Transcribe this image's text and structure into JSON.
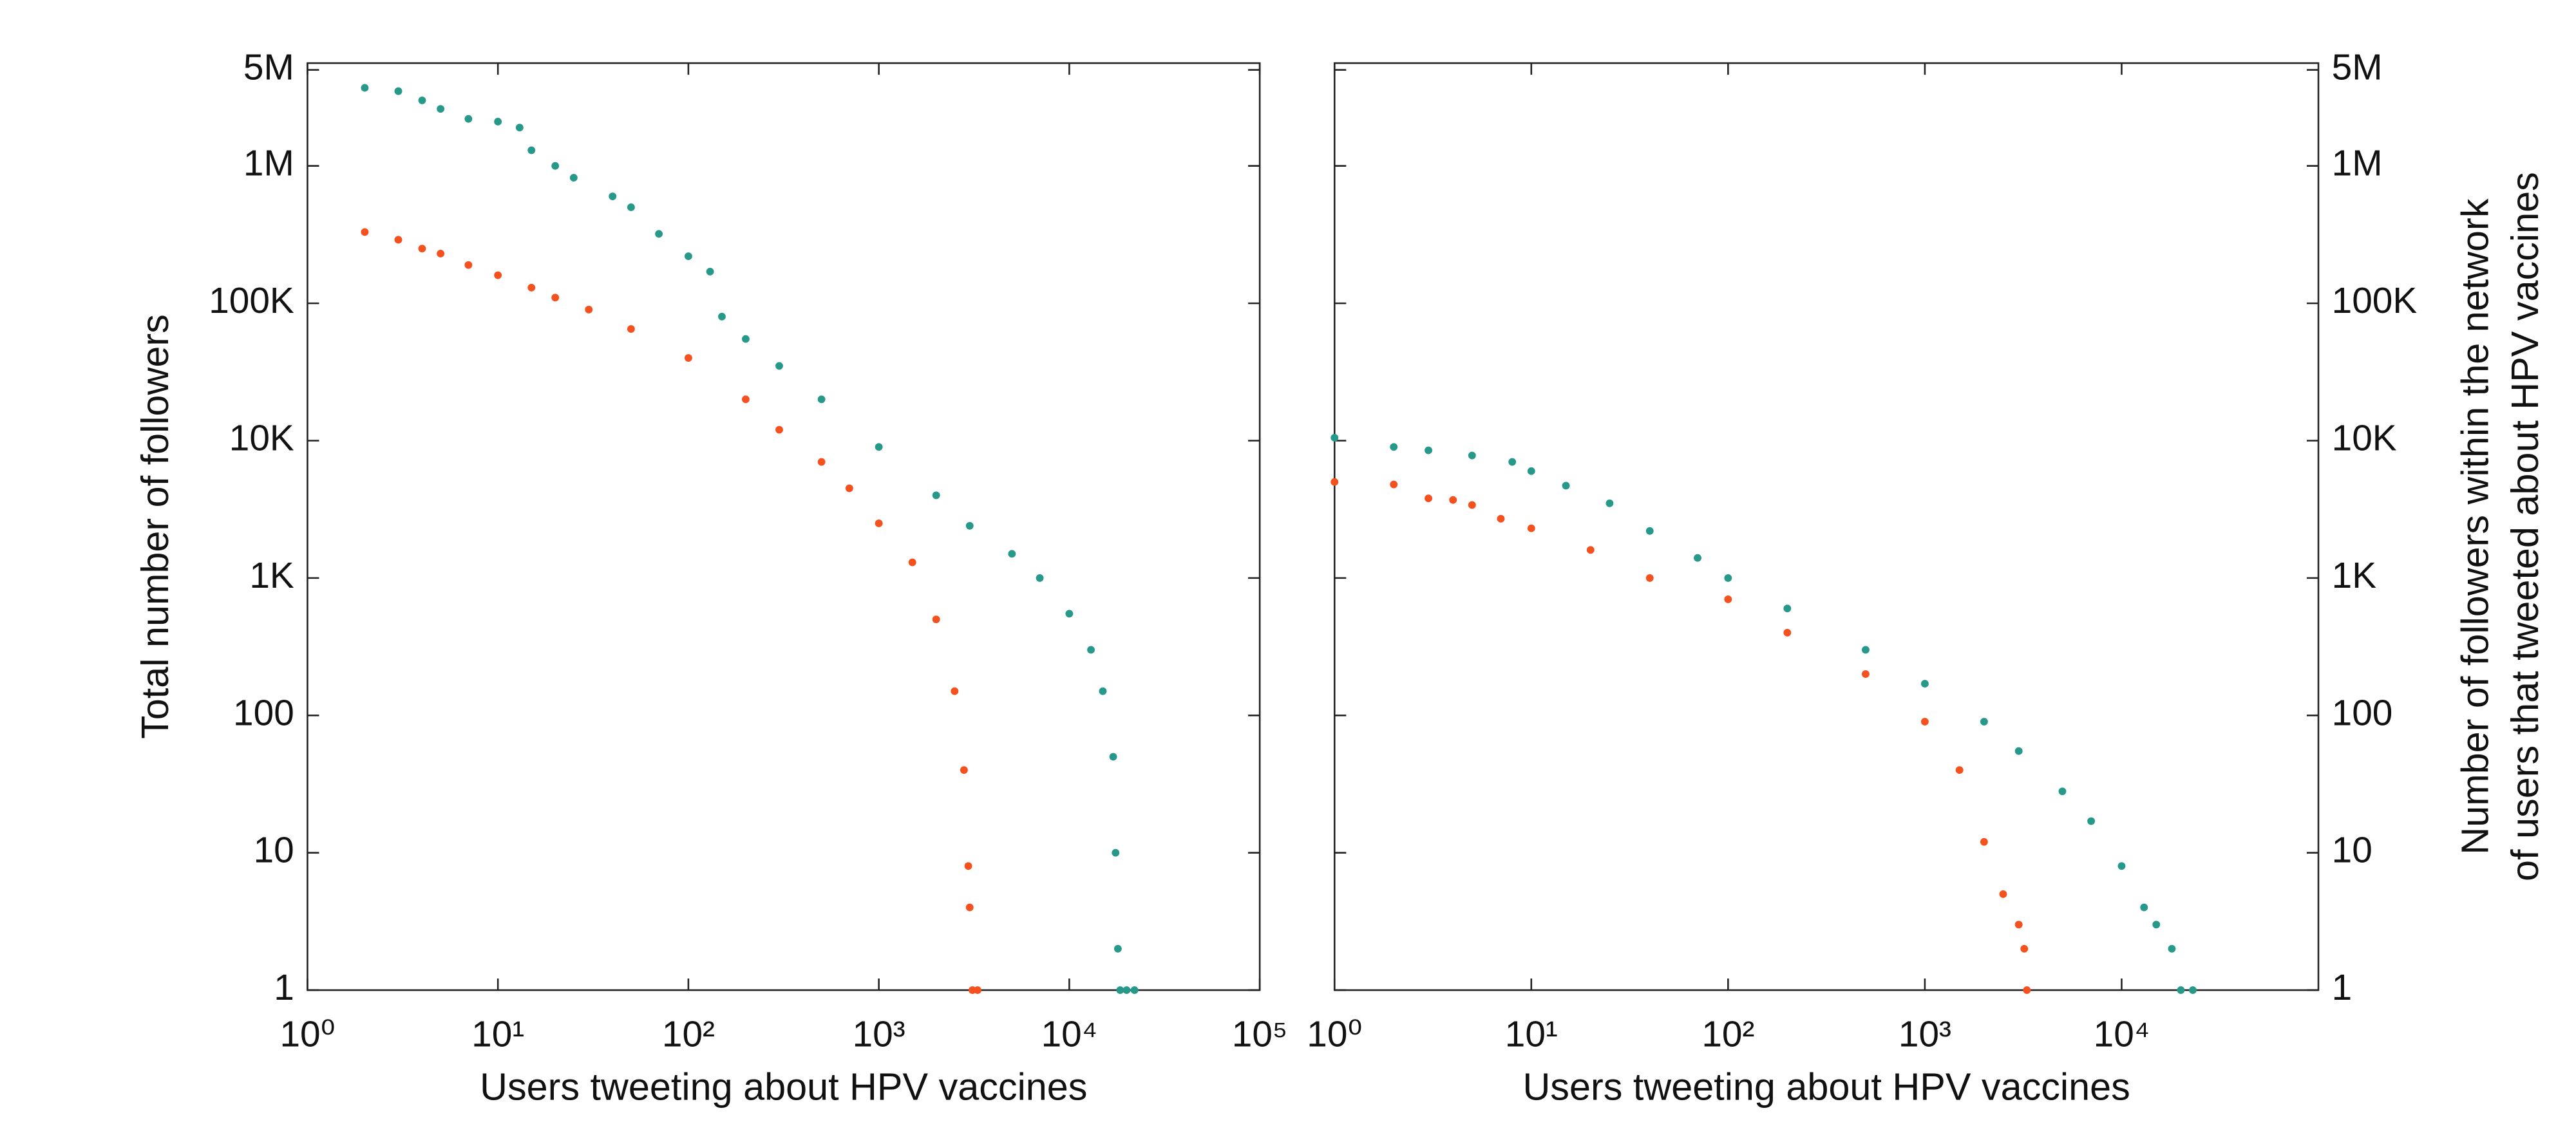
{
  "chart_data": [
    {
      "type": "scatter",
      "xlabel": "Users tweeting about HPV vaccines",
      "ylabel": [
        "Total number of followers"
      ],
      "xscale": "log",
      "yscale": "log",
      "xlim": [
        1,
        100000
      ],
      "ylim": [
        1,
        5600000
      ],
      "xticks": [
        {
          "value": 1,
          "label": "10⁰"
        },
        {
          "value": 10,
          "label": "10¹"
        },
        {
          "value": 100,
          "label": "10²"
        },
        {
          "value": 1000,
          "label": "10³"
        },
        {
          "value": 10000,
          "label": "10⁴"
        },
        {
          "value": 100000,
          "label": "10⁵"
        }
      ],
      "yticks": [
        1,
        10,
        100,
        {
          "value": 1000,
          "label": "1K"
        },
        {
          "value": 10000,
          "label": "10K"
        },
        {
          "value": 100000,
          "label": "100K"
        },
        {
          "value": 1000000,
          "label": "1M"
        },
        {
          "value": 5000000,
          "label": "5M"
        }
      ],
      "ytick_side": "left",
      "series": [
        {
          "color": "#26998a",
          "x": [
            2,
            3,
            4,
            5,
            7,
            10,
            13,
            15,
            20,
            25,
            40,
            50,
            70,
            100,
            130,
            150,
            200,
            300,
            500,
            1000,
            2000,
            3000,
            5000,
            7000,
            10000,
            13000,
            15000,
            17000,
            17500,
            18000,
            18500,
            20000,
            22000
          ],
          "values": [
            3700000,
            3500000,
            3000000,
            2600000,
            2200000,
            2100000,
            1900000,
            1300000,
            1000000,
            820000,
            600000,
            500000,
            320000,
            220000,
            170000,
            80000,
            55000,
            35000,
            20000,
            9000,
            4000,
            2400,
            1500,
            1000,
            550,
            300,
            150,
            50,
            10,
            2,
            1,
            1,
            1
          ]
        },
        {
          "color": "#f4511e",
          "x": [
            2,
            3,
            4,
            5,
            7,
            10,
            15,
            20,
            30,
            50,
            100,
            200,
            300,
            500,
            700,
            1000,
            1500,
            2000,
            2500,
            2800,
            2950,
            3000,
            3100,
            3300
          ],
          "values": [
            330000,
            290000,
            250000,
            230000,
            190000,
            160000,
            130000,
            110000,
            90000,
            65000,
            40000,
            20000,
            12000,
            7000,
            4500,
            2500,
            1300,
            500,
            150,
            40,
            8,
            4,
            1,
            1
          ]
        }
      ]
    },
    {
      "type": "scatter",
      "xlabel": "Users tweeting about HPV vaccines",
      "ylabel": [
        "Number of followers within the network",
        "of users that tweeted about HPV vaccines"
      ],
      "xscale": "log",
      "yscale": "log",
      "xlim": [
        1,
        100000
      ],
      "ylim": [
        1,
        5600000
      ],
      "xticks": [
        {
          "value": 1,
          "label": "10⁰"
        },
        {
          "value": 10,
          "label": "10¹"
        },
        {
          "value": 100,
          "label": "10²"
        },
        {
          "value": 1000,
          "label": "10³"
        },
        {
          "value": 10000,
          "label": "10⁴"
        }
      ],
      "yticks": [
        1,
        10,
        100,
        {
          "value": 1000,
          "label": "1K"
        },
        {
          "value": 10000,
          "label": "10K"
        },
        {
          "value": 100000,
          "label": "100K"
        },
        {
          "value": 1000000,
          "label": "1M"
        },
        {
          "value": 5000000,
          "label": "5M"
        }
      ],
      "ytick_side": "right",
      "series": [
        {
          "color": "#26998a",
          "x": [
            1,
            2,
            3,
            5,
            8,
            10,
            15,
            25,
            40,
            70,
            100,
            200,
            500,
            1000,
            2000,
            3000,
            5000,
            7000,
            10000,
            13000,
            15000,
            18000,
            20000,
            23000
          ],
          "values": [
            10500,
            9000,
            8500,
            7800,
            7000,
            6000,
            4700,
            3500,
            2200,
            1400,
            1000,
            600,
            300,
            170,
            90,
            55,
            28,
            17,
            8,
            4,
            3,
            2,
            1,
            1
          ]
        },
        {
          "color": "#f4511e",
          "x": [
            1,
            2,
            3,
            4,
            5,
            7,
            10,
            20,
            40,
            100,
            200,
            500,
            1000,
            1500,
            2000,
            2500,
            3000,
            3200,
            3300
          ],
          "values": [
            5000,
            4800,
            3800,
            3700,
            3400,
            2700,
            2300,
            1600,
            1000,
            700,
            400,
            200,
            90,
            40,
            12,
            5,
            3,
            2,
            1
          ]
        }
      ]
    }
  ]
}
